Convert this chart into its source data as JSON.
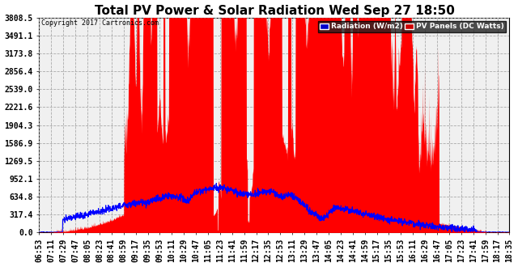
{
  "title": "Total PV Power & Solar Radiation Wed Sep 27 18:50",
  "copyright": "Copyright 2017 Cartronics.com",
  "y_ticks": [
    0.0,
    317.4,
    634.8,
    952.1,
    1269.5,
    1586.9,
    1904.3,
    2221.6,
    2539.0,
    2856.4,
    3173.8,
    3491.1,
    3808.5
  ],
  "y_max": 3808.5,
  "x_labels": [
    "06:53",
    "07:11",
    "07:29",
    "07:47",
    "08:05",
    "08:23",
    "08:41",
    "08:59",
    "09:17",
    "09:35",
    "09:53",
    "10:11",
    "10:29",
    "10:47",
    "11:05",
    "11:23",
    "11:41",
    "11:59",
    "12:17",
    "12:35",
    "12:53",
    "13:11",
    "13:29",
    "13:47",
    "14:05",
    "14:23",
    "14:41",
    "14:59",
    "15:17",
    "15:35",
    "15:53",
    "16:11",
    "16:29",
    "16:47",
    "17:05",
    "17:23",
    "17:41",
    "17:59",
    "18:17",
    "18:35"
  ],
  "bg_color": "#ffffff",
  "plot_bg_color": "#f0f0f0",
  "grid_color": "#aaaaaa",
  "pv_color": "#ff0000",
  "radiation_color": "#0000ff",
  "legend_radiation_bg": "#0000cc",
  "legend_pv_bg": "#cc0000",
  "title_fontsize": 11,
  "tick_fontsize": 7
}
